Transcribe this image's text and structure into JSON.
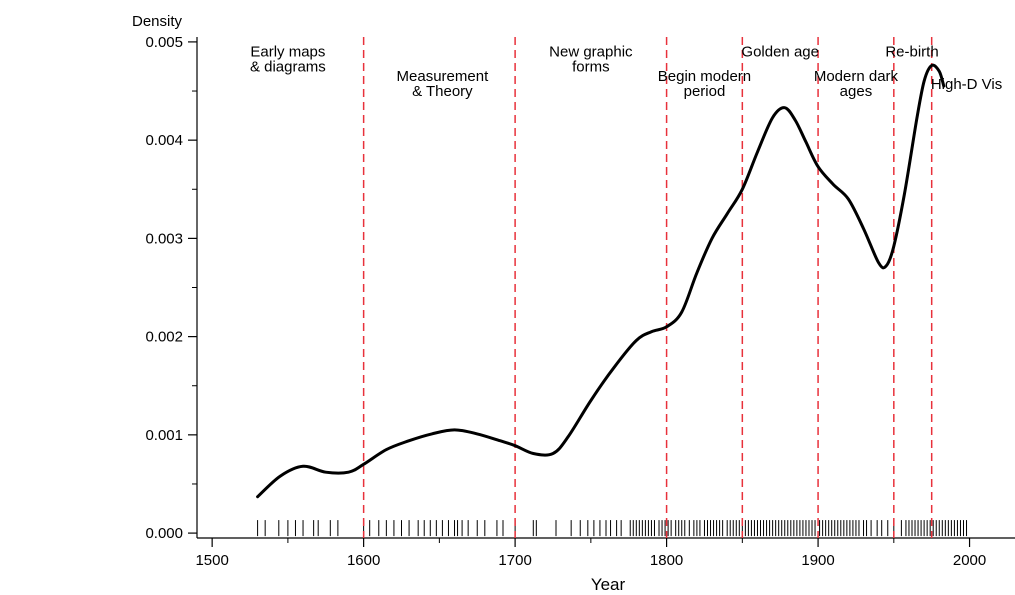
{
  "chart_data": {
    "type": "line",
    "title": "",
    "xlabel": "Year",
    "ylabel": "Density",
    "xlim": [
      1490,
      2030
    ],
    "ylim": [
      -5e-05,
      0.00505
    ],
    "xticks": [
      1500,
      1600,
      1700,
      1800,
      1900,
      2000
    ],
    "yticks": [
      0,
      0.001,
      0.002,
      0.003,
      0.004,
      0.005
    ],
    "ytick_labels": [
      "0.000",
      "0.001",
      "0.002",
      "0.003",
      "0.004",
      "0.005"
    ],
    "grid": false,
    "series": [
      {
        "x": [
          1530,
          1545,
          1560,
          1575,
          1590,
          1600,
          1615,
          1630,
          1645,
          1660,
          1675,
          1690,
          1700,
          1712,
          1725,
          1735,
          1750,
          1765,
          1780,
          1790,
          1800,
          1810,
          1820,
          1830,
          1840,
          1850,
          1860,
          1870,
          1878,
          1885,
          1892,
          1900,
          1910,
          1920,
          1930,
          1940,
          1945,
          1950,
          1957,
          1965,
          1970,
          1975,
          1980,
          1983
        ],
        "y": [
          0.00037,
          0.00058,
          0.00068,
          0.00062,
          0.00062,
          0.0007,
          0.00085,
          0.00094,
          0.00101,
          0.00105,
          0.00101,
          0.00094,
          0.00089,
          0.00081,
          0.00081,
          0.00098,
          0.00135,
          0.00168,
          0.00196,
          0.00205,
          0.0021,
          0.00225,
          0.00265,
          0.003,
          0.00325,
          0.0035,
          0.00388,
          0.00423,
          0.00433,
          0.0042,
          0.00398,
          0.00373,
          0.00355,
          0.0034,
          0.0031,
          0.00275,
          0.00272,
          0.00292,
          0.00345,
          0.0042,
          0.0046,
          0.00476,
          0.0047,
          0.00455
        ]
      }
    ],
    "vlines": [
      1600,
      1700,
      1800,
      1850,
      1900,
      1950,
      1975
    ],
    "rug": [
      1530,
      1535,
      1544,
      1550,
      1555,
      1560,
      1567,
      1570,
      1578,
      1583,
      1600,
      1604,
      1610,
      1615,
      1620,
      1625,
      1630,
      1636,
      1640,
      1644,
      1648,
      1652,
      1656,
      1660,
      1662,
      1665,
      1669,
      1675,
      1680,
      1688,
      1692,
      1700,
      1712,
      1714,
      1727,
      1737,
      1743,
      1748,
      1752,
      1756,
      1760,
      1763,
      1767,
      1770,
      1776,
      1778,
      1780,
      1782,
      1784,
      1786,
      1788,
      1790,
      1792,
      1795,
      1797,
      1799,
      1801,
      1803,
      1806,
      1808,
      1810,
      1812,
      1815,
      1818,
      1820,
      1822,
      1825,
      1827,
      1829,
      1831,
      1833,
      1835,
      1837,
      1840,
      1842,
      1844,
      1846,
      1848,
      1850,
      1852,
      1854,
      1856,
      1858,
      1860,
      1862,
      1864,
      1866,
      1868,
      1870,
      1872,
      1874,
      1876,
      1878,
      1880,
      1882,
      1884,
      1886,
      1888,
      1890,
      1892,
      1894,
      1896,
      1898,
      1901,
      1903,
      1905,
      1907,
      1909,
      1911,
      1913,
      1915,
      1917,
      1919,
      1921,
      1923,
      1925,
      1927,
      1930,
      1932,
      1935,
      1939,
      1942,
      1946,
      1950,
      1955,
      1958,
      1960,
      1962,
      1964,
      1966,
      1968,
      1970,
      1972,
      1974,
      1976,
      1978,
      1980,
      1982,
      1984,
      1986,
      1988,
      1990,
      1992,
      1994,
      1996,
      1998
    ],
    "annotations": [
      {
        "lines": [
          "Early maps",
          "& diagrams"
        ],
        "x": 1550,
        "y": 0.00485
      },
      {
        "lines": [
          "Measurement",
          "& Theory"
        ],
        "x": 1652,
        "y": 0.0046
      },
      {
        "lines": [
          "New graphic",
          "forms"
        ],
        "x": 1750,
        "y": 0.00485
      },
      {
        "lines": [
          "Begin modern",
          "period"
        ],
        "x": 1825,
        "y": 0.0046
      },
      {
        "lines": [
          "Golden age"
        ],
        "x": 1875,
        "y": 0.00485
      },
      {
        "lines": [
          "Modern dark",
          "ages"
        ],
        "x": 1925,
        "y": 0.0046
      },
      {
        "lines": [
          "Re-birth"
        ],
        "x": 1962,
        "y": 0.00485
      },
      {
        "lines": [
          "High-D Vis"
        ],
        "x": 1998,
        "y": 0.00452
      }
    ]
  },
  "colors": {
    "curve": "#000000",
    "vlines": "#e8313b",
    "axis": "#000000",
    "rug": "#000000"
  }
}
